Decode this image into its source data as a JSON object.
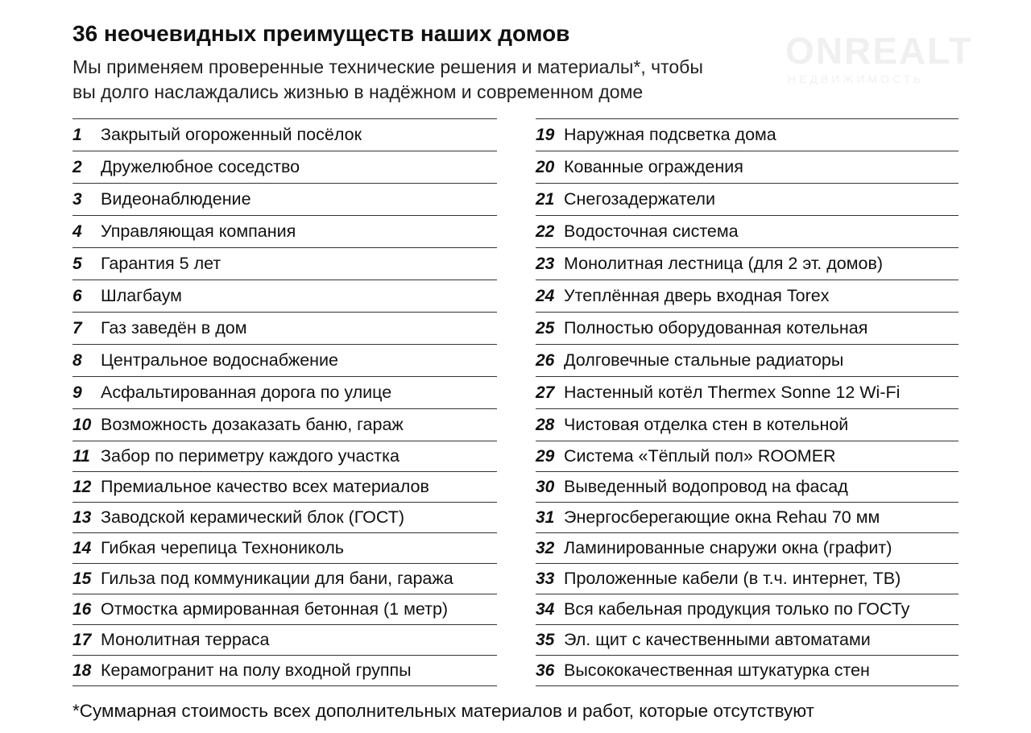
{
  "header": {
    "title": "36 неочевидных преимуществ наших домов",
    "subtitle": [
      "Мы применяем проверенные технические решения и материалы*, чтобы",
      "вы долго наслаждались жизнью в надёжном и современном доме"
    ]
  },
  "watermark": {
    "brand": "ONREALT",
    "tagline": "НЕДВИЖИМОСТЬ"
  },
  "columns": [
    [
      {
        "number": 1,
        "text": "Закрытый огороженный посёлок"
      },
      {
        "number": 2,
        "text": "Дружелюбное соседство"
      },
      {
        "number": 3,
        "text": "Видеонаблюдение"
      },
      {
        "number": 4,
        "text": "Управляющая компания"
      },
      {
        "number": 5,
        "text": "Гарантия 5 лет"
      },
      {
        "number": 6,
        "text": "Шлагбаум"
      },
      {
        "number": 7,
        "text": "Газ заведён в дом"
      },
      {
        "number": 8,
        "text": "Центральное водоснабжение"
      },
      {
        "number": 9,
        "text": "Асфальтированная дорога по улице"
      },
      {
        "number": 10,
        "text": "Возможность дозаказать баню, гараж"
      },
      {
        "number": 11,
        "text": "Забор по периметру каждого участка"
      },
      {
        "number": 12,
        "text": "Премиальное качество всех материалов"
      },
      {
        "number": 13,
        "text": "Заводской керамический блок (ГОСТ)"
      },
      {
        "number": 14,
        "text": "Гибкая черепица Технониколь"
      },
      {
        "number": 15,
        "text": "Гильза под коммуникации для бани, гаража"
      },
      {
        "number": 16,
        "text": "Отмостка армированная бетонная (1 метр)"
      },
      {
        "number": 17,
        "text": "Монолитная терраса"
      },
      {
        "number": 18,
        "text": "Керамогранит на полу входной группы"
      }
    ],
    [
      {
        "number": 19,
        "text": "Наружная подсветка дома"
      },
      {
        "number": 20,
        "text": "Кованные ограждения"
      },
      {
        "number": 21,
        "text": "Снегозадержатели"
      },
      {
        "number": 22,
        "text": "Водосточная система"
      },
      {
        "number": 23,
        "text": "Монолитная лестница (для 2 эт. домов)"
      },
      {
        "number": 24,
        "text": "Утеплённая дверь входная Torex"
      },
      {
        "number": 25,
        "text": "Полностью оборудованная котельная"
      },
      {
        "number": 26,
        "text": "Долговечные стальные радиаторы"
      },
      {
        "number": 27,
        "text": "Настенный котёл Thermex Sonne 12 Wi-Fi"
      },
      {
        "number": 28,
        "text": "Чистовая отделка стен в котельной"
      },
      {
        "number": 29,
        "text": "Система «Тёплый пол» ROOMER"
      },
      {
        "number": 30,
        "text": "Выведенный водопровод на фасад"
      },
      {
        "number": 31,
        "text": "Энергосберегающие окна Rehau 70 мм"
      },
      {
        "number": 32,
        "text": "Ламинированные снаружи окна (графит)"
      },
      {
        "number": 33,
        "text": "Проложенные кабели (в т.ч. интернет, ТВ)"
      },
      {
        "number": 34,
        "text": "Вся кабельная продукция только по ГОСТу"
      },
      {
        "number": 35,
        "text": "Эл. щит с качественными автоматами"
      },
      {
        "number": 36,
        "text": "Высококачественная штукатурка стен"
      }
    ]
  ],
  "footnote": "*Суммарная стоимость всех дополнительных материалов и работ, которые отсутствуют"
}
